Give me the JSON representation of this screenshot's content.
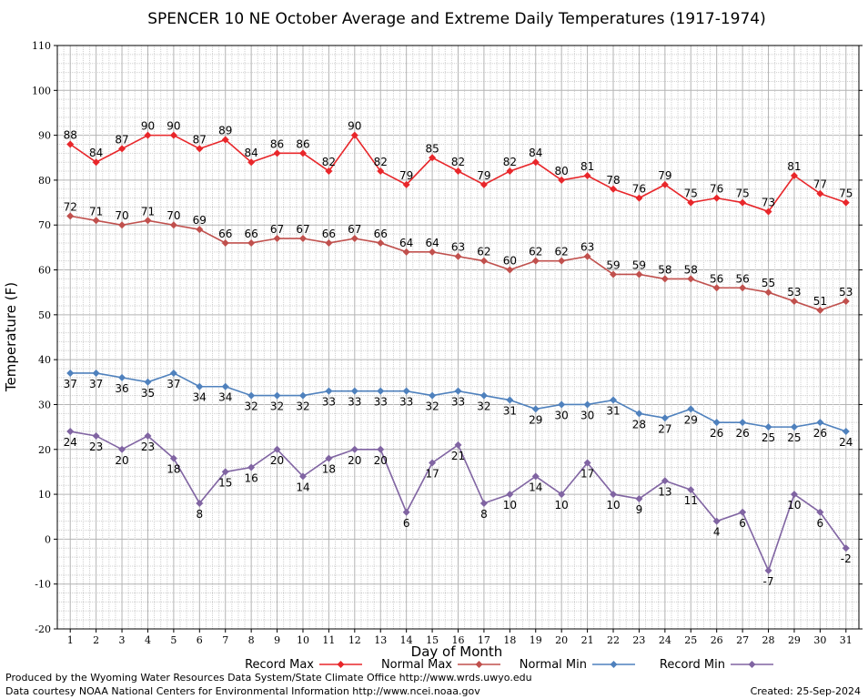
{
  "chart_data": {
    "type": "line",
    "title": "SPENCER 10 NE October Average and Extreme Daily Temperatures (1917-1974)",
    "xlabel": "Day of Month",
    "ylabel": "Temperature (F)",
    "x": [
      1,
      2,
      3,
      4,
      5,
      6,
      7,
      8,
      9,
      10,
      11,
      12,
      13,
      14,
      15,
      16,
      17,
      18,
      19,
      20,
      21,
      22,
      23,
      24,
      25,
      26,
      27,
      28,
      29,
      30,
      31
    ],
    "x_tick_labels": [
      "1",
      "2",
      "3",
      "4",
      "5",
      "6",
      "7",
      "8",
      "9",
      "10",
      "11",
      "12",
      "13",
      "14",
      "15",
      "16",
      "17",
      "18",
      "19",
      "20",
      "21",
      "22",
      "23",
      "24",
      "25",
      "26",
      "27",
      "28",
      "29",
      "30",
      "31"
    ],
    "xlim": [
      0.5,
      31.5
    ],
    "ylim": [
      -20,
      110
    ],
    "y_ticks": [
      -20,
      -10,
      0,
      10,
      20,
      30,
      40,
      50,
      60,
      70,
      80,
      90,
      100,
      110
    ],
    "y_tick_labels": [
      "-20",
      "-10",
      "0",
      "10",
      "20",
      "30",
      "40",
      "50",
      "60",
      "70",
      "80",
      "90",
      "100",
      "110"
    ],
    "grid": true,
    "legend_position": "bottom",
    "series": [
      {
        "name": "Record Max",
        "color": "#e8262a",
        "label_position": "above",
        "values": [
          88,
          84,
          87,
          90,
          90,
          87,
          89,
          84,
          86,
          86,
          82,
          90,
          82,
          79,
          85,
          82,
          79,
          82,
          84,
          80,
          81,
          78,
          76,
          79,
          75,
          76,
          75,
          73,
          81,
          77,
          75
        ]
      },
      {
        "name": "Normal Max",
        "color": "#c0504d",
        "label_position": "above",
        "values": [
          72,
          71,
          70,
          71,
          70,
          69,
          66,
          66,
          67,
          67,
          66,
          67,
          66,
          64,
          64,
          63,
          62,
          60,
          62,
          62,
          63,
          59,
          59,
          58,
          58,
          56,
          56,
          55,
          53,
          51,
          53
        ]
      },
      {
        "name": "Normal Min",
        "color": "#4f81bd",
        "label_position": "below",
        "values": [
          37,
          37,
          36,
          35,
          37,
          34,
          34,
          32,
          32,
          32,
          33,
          33,
          33,
          33,
          32,
          33,
          32,
          31,
          29,
          30,
          30,
          31,
          28,
          27,
          29,
          26,
          26,
          25,
          25,
          26,
          24
        ]
      },
      {
        "name": "Record Min",
        "color": "#8064a2",
        "label_position": "below",
        "values": [
          24,
          23,
          20,
          23,
          18,
          8,
          15,
          16,
          20,
          14,
          18,
          20,
          20,
          6,
          17,
          21,
          8,
          10,
          14,
          10,
          17,
          10,
          9,
          13,
          11,
          4,
          6,
          -7,
          10,
          6,
          -2
        ]
      }
    ]
  },
  "footer": {
    "produced_by": "Produced by the Wyoming Water Resources Data System/State Climate Office http://www.wrds.uwyo.edu",
    "data_courtesy": "Data courtesy NOAA National Centers for Environmental Information http://www.ncei.noaa.gov",
    "created": "Created:  25-Sep-2024"
  }
}
